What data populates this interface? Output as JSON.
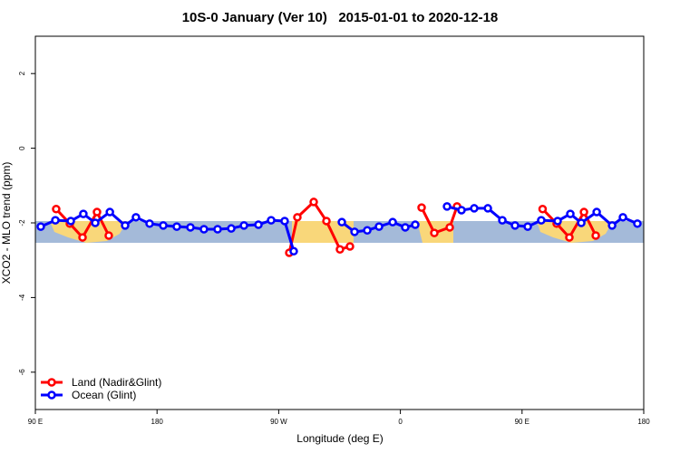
{
  "chart_data": {
    "type": "line",
    "title": "10S-0 January (Ver 10)   2015-01-01 to 2020-12-18",
    "x_label": "Longitude (deg E)",
    "y_label": "XCO2 - MLO trend (ppm)",
    "xlim": [
      90,
      540
    ],
    "ylim": [
      -7,
      3
    ],
    "xticks": [
      {
        "value": 90,
        "label": "90 E"
      },
      {
        "value": 180,
        "label": "180"
      },
      {
        "value": 270,
        "label": "90 W"
      },
      {
        "value": 360,
        "label": "0"
      },
      {
        "value": 450,
        "label": "90 E"
      },
      {
        "value": 540,
        "label": "180"
      }
    ],
    "yticks": [
      -6,
      -4,
      -2,
      0,
      2
    ],
    "legend": "bottom-left",
    "series": [
      {
        "name": "Land (Nadir&Glint)",
        "color": "#ff0000",
        "x": [
          105.4,
          115.5,
          124.9,
          135.6,
          144.3,
          null,
          277.8,
          283.8,
          295.9,
          305.3,
          315.3,
          322.7,
          null,
          375.7,
          385.1,
          396.5,
          401.9,
          null,
          465.2,
          475.6,
          485.0,
          495.8,
          504.5
        ],
        "values": [
          -1.63,
          -2.02,
          -2.39,
          -1.71,
          -2.34,
          null,
          -2.8,
          -1.85,
          -1.44,
          -1.95,
          -2.71,
          -2.63,
          null,
          -1.59,
          -2.27,
          -2.12,
          -1.56,
          null,
          -1.63,
          -2.02,
          -2.39,
          -1.71,
          -2.34
        ]
      },
      {
        "name": "Ocean (Glint)",
        "color": "#0000ff",
        "x": [
          94.0,
          104.8,
          116.2,
          125.5,
          134.3,
          145.1,
          156.4,
          164.4,
          174.5,
          184.6,
          194.6,
          204.7,
          214.7,
          224.8,
          234.9,
          244.3,
          255.0,
          264.4,
          274.4,
          281.1,
          null,
          316.7,
          326.1,
          335.5,
          344.2,
          354.3,
          363.6,
          371.0,
          null,
          394.5,
          405.2,
          414.6,
          424.7,
          435.4,
          444.8,
          454.2,
          464.2,
          476.3,
          485.7,
          493.8,
          505.2,
          516.6,
          524.6,
          535.3
        ],
        "values": [
          -2.1,
          -1.93,
          -1.95,
          -1.76,
          -2.0,
          -1.71,
          -2.07,
          -1.85,
          -2.02,
          -2.07,
          -2.1,
          -2.12,
          -2.17,
          -2.17,
          -2.15,
          -2.07,
          -2.05,
          -1.93,
          -1.95,
          -2.76,
          null,
          -1.98,
          -2.24,
          -2.2,
          -2.1,
          -1.98,
          -2.12,
          -2.05,
          null,
          -1.56,
          -1.66,
          -1.61,
          -1.61,
          -1.93,
          -2.07,
          -2.1,
          -1.93,
          -1.95,
          -1.76,
          -2.0,
          -1.71,
          -2.07,
          -1.85,
          -2.02
        ]
      }
    ]
  }
}
